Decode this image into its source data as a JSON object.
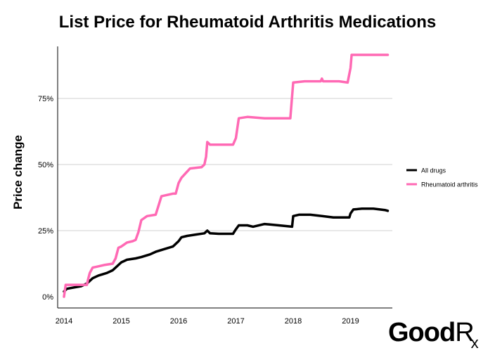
{
  "title": "List Price for Rheumatoid Arthritis Medications",
  "brand": {
    "good": "Good",
    "r": "R",
    "x": "x"
  },
  "colors": {
    "all_drugs": "#000000",
    "rheumatoid_arthritis": "#ff69b4",
    "grid": "#d0d0d0"
  },
  "chart_data": {
    "type": "line",
    "title": "List Price for Rheumatoid Arthritis Medications",
    "xlabel": "",
    "ylabel": "Price change",
    "xlim": [
      2014,
      2019.7
    ],
    "ylim": [
      0,
      0.92
    ],
    "x_ticks": [
      {
        "value": 2014,
        "label": "2014"
      },
      {
        "value": 2015,
        "label": "2015"
      },
      {
        "value": 2016,
        "label": "2016"
      },
      {
        "value": 2017,
        "label": "2017"
      },
      {
        "value": 2018,
        "label": "2018"
      },
      {
        "value": 2019,
        "label": "2019"
      }
    ],
    "y_ticks": [
      {
        "value": 0,
        "label": "0%"
      },
      {
        "value": 0.25,
        "label": "25%"
      },
      {
        "value": 0.5,
        "label": "50%"
      },
      {
        "value": 0.75,
        "label": "75%"
      }
    ],
    "grid": "horizontal",
    "legend_position": "right",
    "series": [
      {
        "name": "All drugs",
        "color": "#000000",
        "x": [
          2014.0,
          2014.05,
          2014.3,
          2014.4,
          2014.5,
          2014.6,
          2014.75,
          2014.85,
          2014.95,
          2015.0,
          2015.1,
          2015.25,
          2015.35,
          2015.5,
          2015.6,
          2015.75,
          2015.9,
          2016.0,
          2016.05,
          2016.15,
          2016.3,
          2016.45,
          2016.5,
          2016.55,
          2016.7,
          2016.95,
          2017.0,
          2017.05,
          2017.2,
          2017.3,
          2017.5,
          2017.75,
          2017.98,
          2018.0,
          2018.1,
          2018.3,
          2018.5,
          2018.7,
          2018.98,
          2019.0,
          2019.05,
          2019.2,
          2019.4,
          2019.6,
          2019.65
        ],
        "y": [
          0.02,
          0.03,
          0.04,
          0.05,
          0.07,
          0.08,
          0.09,
          0.1,
          0.12,
          0.13,
          0.14,
          0.145,
          0.15,
          0.16,
          0.17,
          0.18,
          0.19,
          0.21,
          0.225,
          0.23,
          0.235,
          0.24,
          0.25,
          0.24,
          0.238,
          0.238,
          0.255,
          0.27,
          0.27,
          0.265,
          0.275,
          0.27,
          0.265,
          0.305,
          0.31,
          0.31,
          0.305,
          0.3,
          0.3,
          0.315,
          0.33,
          0.333,
          0.333,
          0.328,
          0.325
        ]
      },
      {
        "name": "Rheumatoid arthritis",
        "color": "#ff69b4",
        "x": [
          2014.0,
          2014.03,
          2014.3,
          2014.4,
          2014.42,
          2014.45,
          2014.5,
          2014.6,
          2014.7,
          2014.85,
          2014.9,
          2014.95,
          2015.0,
          2015.1,
          2015.2,
          2015.25,
          2015.3,
          2015.35,
          2015.45,
          2015.6,
          2015.65,
          2015.7,
          2015.9,
          2015.95,
          2016.0,
          2016.05,
          2016.2,
          2016.4,
          2016.45,
          2016.48,
          2016.5,
          2016.55,
          2016.95,
          2017.0,
          2017.05,
          2017.2,
          2017.5,
          2017.95,
          2018.0,
          2018.2,
          2018.48,
          2018.5,
          2018.52,
          2018.8,
          2018.95,
          2019.0,
          2019.02,
          2019.2,
          2019.6,
          2019.65
        ],
        "y": [
          0.0,
          0.045,
          0.045,
          0.045,
          0.065,
          0.09,
          0.11,
          0.115,
          0.12,
          0.125,
          0.145,
          0.185,
          0.19,
          0.205,
          0.21,
          0.215,
          0.245,
          0.29,
          0.305,
          0.31,
          0.345,
          0.38,
          0.39,
          0.39,
          0.43,
          0.45,
          0.485,
          0.49,
          0.5,
          0.53,
          0.585,
          0.575,
          0.575,
          0.6,
          0.675,
          0.68,
          0.675,
          0.675,
          0.81,
          0.815,
          0.815,
          0.825,
          0.815,
          0.815,
          0.81,
          0.865,
          0.915,
          0.915,
          0.915,
          0.915
        ]
      }
    ]
  }
}
